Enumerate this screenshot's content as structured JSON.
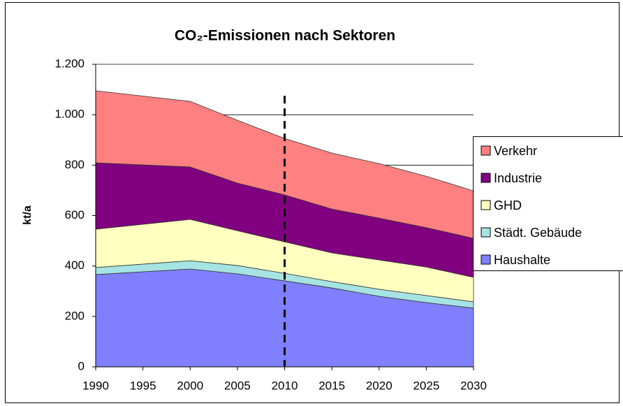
{
  "chart_data": {
    "type": "stacked-area",
    "title": "CO₂-Emissionen nach Sektoren",
    "y_label": "kt/a",
    "x": [
      1990,
      2000,
      2005,
      2010,
      2015,
      2020,
      2025,
      2030
    ],
    "xlim": [
      1990,
      2030
    ],
    "xticks": [
      1990,
      1995,
      2000,
      2005,
      2010,
      2015,
      2020,
      2025,
      2030
    ],
    "ylim": [
      0,
      1200
    ],
    "yticks": [
      0,
      200,
      400,
      600,
      800,
      {
        "value": 1000,
        "label": "1.000"
      },
      {
        "value": 1200,
        "label": "1.200"
      }
    ],
    "grid": true,
    "legend": "right",
    "vline": {
      "x": 2010,
      "top": 1075
    },
    "series": [
      {
        "name": "Haushalte",
        "color": "#8080ff",
        "values": [
          366,
          388,
          369,
          341,
          313,
          280,
          255,
          233
        ]
      },
      {
        "name": "Städt. Gebäude",
        "color": "#a6e3e3",
        "values": [
          28,
          33,
          33,
          30,
          25,
          28,
          28,
          25
        ]
      },
      {
        "name": "GHD",
        "color": "#ffffc0",
        "values": [
          152,
          164,
          138,
          125,
          114,
          116,
          113,
          97
        ]
      },
      {
        "name": "Industrie",
        "color": "#800080",
        "values": [
          263,
          208,
          189,
          186,
          174,
          166,
          156,
          155
        ]
      },
      {
        "name": "Verkehr",
        "color": "#ff8080",
        "values": [
          286,
          260,
          249,
          224,
          222,
          216,
          204,
          188
        ]
      }
    ]
  }
}
